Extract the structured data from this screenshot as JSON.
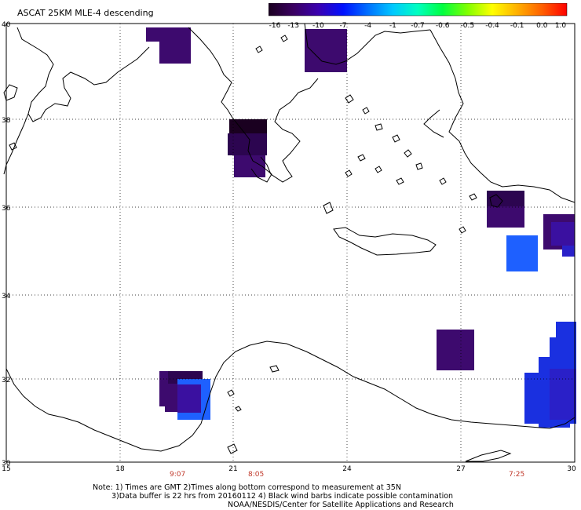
{
  "title": "ASCAT 25KM MLE-4 descending",
  "colorbar": {
    "labels": [
      "-16",
      "-13",
      "-10",
      "-7",
      "-4",
      "-1",
      "-0.7",
      "-0.6",
      "-0.5",
      "-0.4",
      "-0.1",
      "0.0",
      "1.0"
    ],
    "stops": [
      "#1a0020",
      "#3a0060",
      "#3a00b0",
      "#0010ff",
      "#0070ff",
      "#00c8ff",
      "#00ffc0",
      "#00ff40",
      "#80ff00",
      "#ffff00",
      "#ffb000",
      "#ff6000",
      "#ff0000"
    ]
  },
  "axes": {
    "lat_labels": [
      "40",
      "38",
      "36",
      "34",
      "32",
      "30"
    ],
    "lon_labels": [
      "15",
      "18",
      "21",
      "24",
      "27",
      "30"
    ]
  },
  "times": [
    "9:07",
    "8:05",
    "7:25"
  ],
  "notes": {
    "line1": "Note: 1) Times are GMT 2)Times along bottom correspond to measurement at 35N",
    "line2": "3)Data buffer is 22 hrs from 20160112 4) Black wind barbs indicate possible contamination",
    "line3": "NOAA/NESDIS/Center for Satellite Applications and Research"
  },
  "colors": {
    "grid": "#000000",
    "coast": "#000000",
    "time_text": "#c0392b"
  }
}
